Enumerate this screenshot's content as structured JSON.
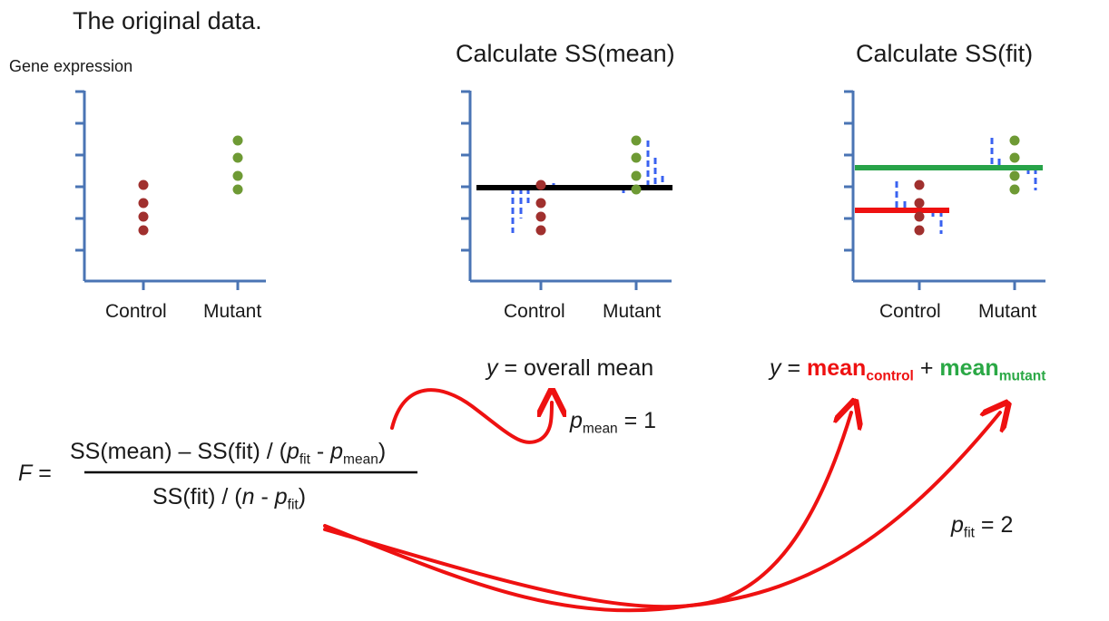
{
  "header": {
    "title": "The original data.",
    "y_label": "Gene expression"
  },
  "panels": {
    "p1": {
      "x_ticks": [
        "Control",
        "Mutant"
      ]
    },
    "p2": {
      "title": "Calculate SS(mean)",
      "x_ticks": [
        "Control",
        "Mutant"
      ]
    },
    "p3": {
      "title": "Calculate SS(fit)",
      "x_ticks": [
        "Control",
        "Mutant"
      ]
    }
  },
  "equations": {
    "mean_model": {
      "y": "y",
      "rest": "= overall mean"
    },
    "fit_model": {
      "y": "y",
      "eq": "=",
      "mean_control": "mean",
      "control_sub": "control",
      "plus": "+",
      "mean_mutant": "mean",
      "mutant_sub": "mutant"
    },
    "p_mean": {
      "p": "p",
      "sub": "mean",
      "rest": "= 1"
    },
    "p_fit": {
      "p": "p",
      "sub": "fit",
      "rest": "= 2"
    },
    "F": {
      "lhs_var": "F",
      "lhs_eq": "=",
      "num_a": "SS(mean) – SS(fit) / (",
      "num_p1": "p",
      "num_p1_sub": "fit",
      "num_minus": " - ",
      "num_p2": "p",
      "num_p2_sub": "mean",
      "num_close": ")",
      "den_a": "SS(fit) / (",
      "den_n": "n",
      "den_minus": " - ",
      "den_p": "p",
      "den_p_sub": "fit",
      "den_close": ")"
    }
  },
  "colors": {
    "axis": "#4a74b4",
    "control_dot": "#a0302e",
    "mutant_dot": "#6e9a34",
    "residual": "#3a62f0",
    "overall_mean_line": "#000000",
    "control_mean_line": "#ee1111",
    "mutant_mean_line": "#27a348",
    "arrow": "#ee1111"
  }
}
